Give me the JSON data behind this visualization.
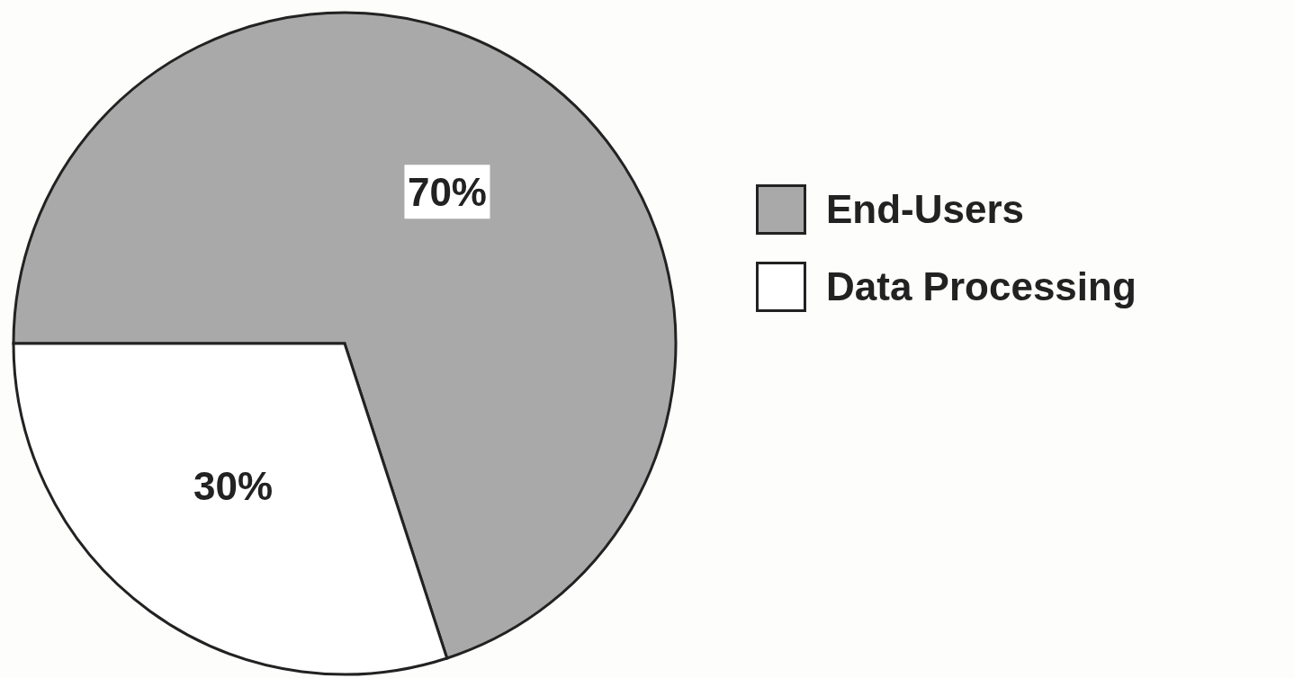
{
  "chart_data": {
    "type": "pie",
    "categories": [
      "End-Users",
      "Data Processing"
    ],
    "values": [
      70,
      30
    ],
    "colors": [
      "#a9a9a9",
      "#ffffff"
    ],
    "value_labels": [
      "70%",
      "30%"
    ],
    "legend": "right"
  }
}
